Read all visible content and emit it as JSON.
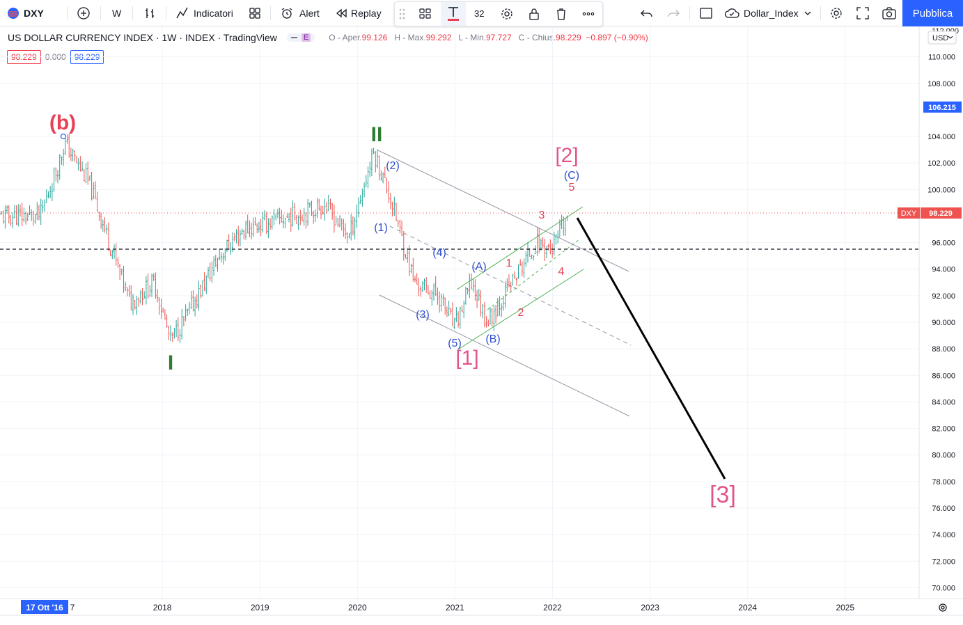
{
  "toolbar": {
    "symbol": "DXY",
    "interval": "W",
    "indicators_label": "Indicatori",
    "alert_label": "Alert",
    "replay_label": "Replay",
    "font_size": "32",
    "layout_name": "Dollar_Index",
    "publish_label": "Pubblica"
  },
  "legend": {
    "title": "US DOLLAR CURRENCY INDEX · 1W · INDEX · TradingView",
    "badge": "E",
    "o_label": "O - Aper.",
    "o_value": "99.126",
    "h_label": "H - Max.",
    "h_value": "99.292",
    "l_label": "L - Min.",
    "l_value": "97.727",
    "c_label": "C - Chius.",
    "c_value": "98.229",
    "change": "−0.897 (−0.90%)",
    "bid": "98.229",
    "spread": "0.000",
    "ask": "98.229"
  },
  "colors": {
    "up": "#26a69a",
    "down": "#ef5350",
    "accent": "#2962ff",
    "label_red": "#e84156",
    "label_green": "#2e7d32",
    "label_blue": "#2f4fcf",
    "label_pink": "#e2558c"
  },
  "axis": {
    "currency": "USD",
    "top_tick": "112.000",
    "price_ticks": [
      "110.000",
      "108.000",
      "104.000",
      "102.000",
      "100.000",
      "96.000",
      "94.000",
      "92.000",
      "90.000",
      "88.000",
      "86.000",
      "84.000",
      "82.000",
      "80.000",
      "78.000",
      "76.000",
      "74.000",
      "72.000",
      "70.000"
    ],
    "crosshair_price": "106.215",
    "last_price": "98.229",
    "last_symbol": "DXY",
    "time_ticks": [
      "2018",
      "2019",
      "2020",
      "2021",
      "2022",
      "2023",
      "2024",
      "2025"
    ],
    "crosshair_date": "17 Ott '16",
    "date_trail": "7"
  },
  "waves": [
    "(b)",
    "II",
    "I",
    "(2)",
    "(1)",
    "(4)",
    "(3)",
    "(5)",
    "[1]",
    "(A)",
    "(B)",
    "1",
    "2",
    "3",
    "4",
    "5",
    "(C)",
    "[2]",
    "[3]"
  ],
  "chart_data": {
    "type": "candlestick",
    "symbol": "DXY",
    "interval": "1W",
    "x": [
      "2016-10",
      "2016-12",
      "2017-01",
      "2017-04",
      "2017-09",
      "2017-12",
      "2018-02",
      "2018-04",
      "2018-08",
      "2018-11",
      "2019-05",
      "2019-09",
      "2019-12",
      "2020-03",
      "2020-05",
      "2020-08",
      "2020-11",
      "2021-01",
      "2021-03",
      "2021-05",
      "2021-08",
      "2021-11",
      "2022-01",
      "2022-03"
    ],
    "close": [
      98.0,
      101.5,
      103.5,
      100.5,
      91.5,
      93.0,
      88.6,
      90.5,
      95.0,
      97.0,
      98.0,
      98.8,
      96.5,
      102.8,
      99.5,
      93.0,
      92.0,
      89.6,
      93.0,
      90.0,
      93.0,
      96.0,
      95.5,
      98.2
    ],
    "ohlc_last": {
      "open": 99.126,
      "high": 99.292,
      "low": 97.727,
      "close": 98.229,
      "change": -0.897,
      "change_pct": -0.9
    },
    "ylim": [
      69.5,
      112.5
    ],
    "projection": {
      "from": [
        "2022-03",
        98.2
      ],
      "to": [
        "2023-10",
        78.0
      ]
    },
    "horizontal_level": 95.5
  }
}
